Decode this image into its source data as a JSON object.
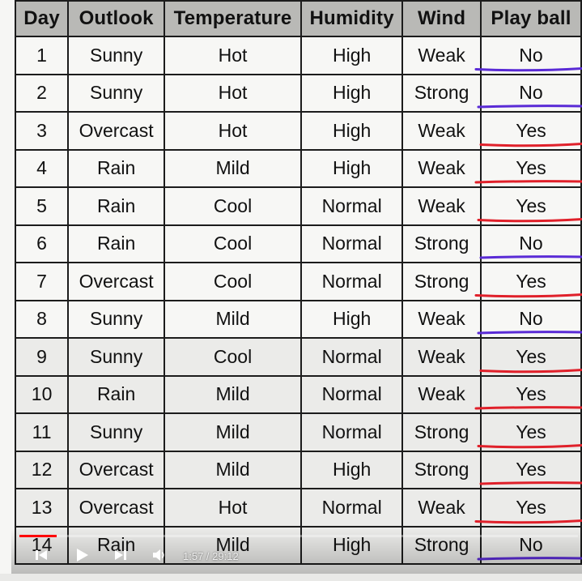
{
  "table": {
    "headers": [
      "Day",
      "Outlook",
      "Temperature",
      "Humidity",
      "Wind",
      "Play ball"
    ],
    "rows": [
      {
        "day": "1",
        "outlook": "Sunny",
        "temperature": "Hot",
        "humidity": "High",
        "wind": "Weak",
        "play": "No"
      },
      {
        "day": "2",
        "outlook": "Sunny",
        "temperature": "Hot",
        "humidity": "High",
        "wind": "Strong",
        "play": "No"
      },
      {
        "day": "3",
        "outlook": "Overcast",
        "temperature": "Hot",
        "humidity": "High",
        "wind": "Weak",
        "play": "Yes"
      },
      {
        "day": "4",
        "outlook": "Rain",
        "temperature": "Mild",
        "humidity": "High",
        "wind": "Weak",
        "play": "Yes"
      },
      {
        "day": "5",
        "outlook": "Rain",
        "temperature": "Cool",
        "humidity": "Normal",
        "wind": "Weak",
        "play": "Yes"
      },
      {
        "day": "6",
        "outlook": "Rain",
        "temperature": "Cool",
        "humidity": "Normal",
        "wind": "Strong",
        "play": "No"
      },
      {
        "day": "7",
        "outlook": "Overcast",
        "temperature": "Cool",
        "humidity": "Normal",
        "wind": "Strong",
        "play": "Yes"
      },
      {
        "day": "8",
        "outlook": "Sunny",
        "temperature": "Mild",
        "humidity": "High",
        "wind": "Weak",
        "play": "No"
      },
      {
        "day": "9",
        "outlook": "Sunny",
        "temperature": "Cool",
        "humidity": "Normal",
        "wind": "Weak",
        "play": "Yes"
      },
      {
        "day": "10",
        "outlook": "Rain",
        "temperature": "Mild",
        "humidity": "Normal",
        "wind": "Weak",
        "play": "Yes"
      },
      {
        "day": "11",
        "outlook": "Sunny",
        "temperature": "Mild",
        "humidity": "Normal",
        "wind": "Strong",
        "play": "Yes"
      },
      {
        "day": "12",
        "outlook": "Overcast",
        "temperature": "Mild",
        "humidity": "High",
        "wind": "Strong",
        "play": "Yes"
      },
      {
        "day": "13",
        "outlook": "Overcast",
        "temperature": "Hot",
        "humidity": "Normal",
        "wind": "Weak",
        "play": "Yes"
      },
      {
        "day": "14",
        "outlook": "Rain",
        "temperature": "Mild",
        "humidity": "High",
        "wind": "Strong",
        "play": "No"
      }
    ]
  },
  "annotation_colors": {
    "yes_underline": "#e0202a",
    "no_underline": "#5a2bd6"
  },
  "player": {
    "time_label": "1:57 / 29:12",
    "progress_fraction": 0.067,
    "icons": {
      "prev": "skip-previous-icon",
      "play": "play-icon",
      "next": "skip-next-icon",
      "volume": "volume-icon"
    },
    "progress_color": "#ff0000"
  }
}
